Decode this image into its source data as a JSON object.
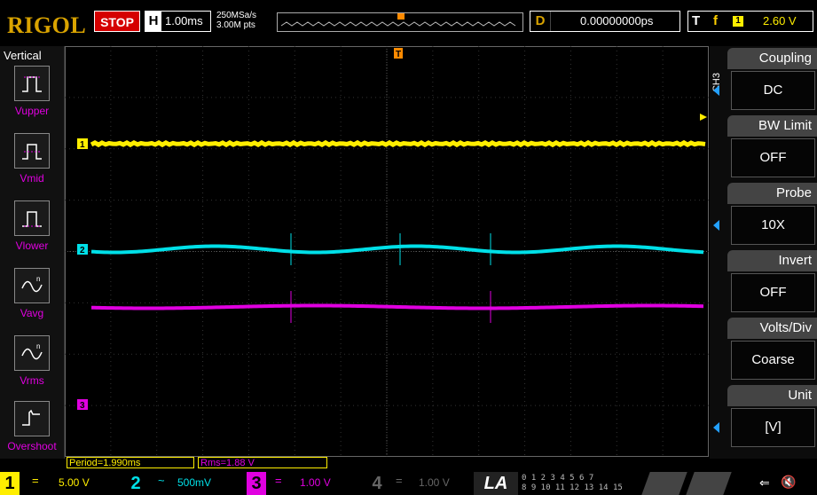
{
  "brand": "RIGOL",
  "run_state": "STOP",
  "horizontal": {
    "label": "H",
    "timebase": "1.00ms",
    "sample_rate": "250MSa/s",
    "memory_depth": "3.00M pts"
  },
  "delay": {
    "label": "D",
    "value": "0.00000000ps"
  },
  "trigger": {
    "label": "T",
    "edge_symbol": "f",
    "source": "1",
    "level": "2.60 V"
  },
  "left_menu": {
    "title": "Vertical",
    "items": [
      {
        "label": "Vupper",
        "icon": "vupper-icon"
      },
      {
        "label": "Vmid",
        "icon": "vmid-icon"
      },
      {
        "label": "Vlower",
        "icon": "vlower-icon"
      },
      {
        "label": "Vavg",
        "icon": "vavg-icon"
      },
      {
        "label": "Vrms",
        "icon": "vrms-icon"
      },
      {
        "label": "Overshoot",
        "icon": "overshoot-icon"
      }
    ]
  },
  "right_menu": {
    "channel": "CH3",
    "items": [
      {
        "header": "Coupling",
        "value": "DC",
        "has_arrow": true
      },
      {
        "header": "BW Limit",
        "value": "OFF",
        "has_arrow": false
      },
      {
        "header": "Probe",
        "value": "10X",
        "has_arrow": true
      },
      {
        "header": "Invert",
        "value": "OFF",
        "has_arrow": false
      },
      {
        "header": "Volts/Div",
        "value": "Coarse",
        "has_arrow": false
      },
      {
        "header": "Unit",
        "value": "[V]",
        "has_arrow": true
      }
    ]
  },
  "measurements": [
    {
      "text": "Period=1.990ms",
      "color": "#ffee00"
    },
    {
      "text": "Rms=1.88 V",
      "color": "#e000e0"
    }
  ],
  "channels": [
    {
      "num": "1",
      "coupling": "=",
      "scale": "5.00 V",
      "color": "#ffee00",
      "active": true
    },
    {
      "num": "2",
      "coupling": "~",
      "scale": "500mV",
      "color": "#00e0e8",
      "active": true
    },
    {
      "num": "3",
      "coupling": "=",
      "scale": "1.00 V",
      "color": "#e000e0",
      "active": true
    },
    {
      "num": "4",
      "coupling": "=",
      "scale": "1.00 V",
      "color": "#555555",
      "active": false
    }
  ],
  "logic_analyzer": {
    "label": "LA",
    "bits_row1": "0 1 2 3  4 5 6 7",
    "bits_row2": "8 9 10 11  12 13 14 15"
  },
  "trace_markers": [
    {
      "label": "1",
      "color": "#ffee00"
    },
    {
      "label": "2",
      "color": "#00e0e8"
    },
    {
      "label": "3",
      "color": "#e000e0"
    }
  ],
  "trigger_marker": "T",
  "colors": {
    "ch1": "#ffee00",
    "ch2": "#00e0e8",
    "ch3": "#e000e0",
    "brand": "#d9a300",
    "stop": "#d50000",
    "menu_arrow": "#23a0ff"
  }
}
